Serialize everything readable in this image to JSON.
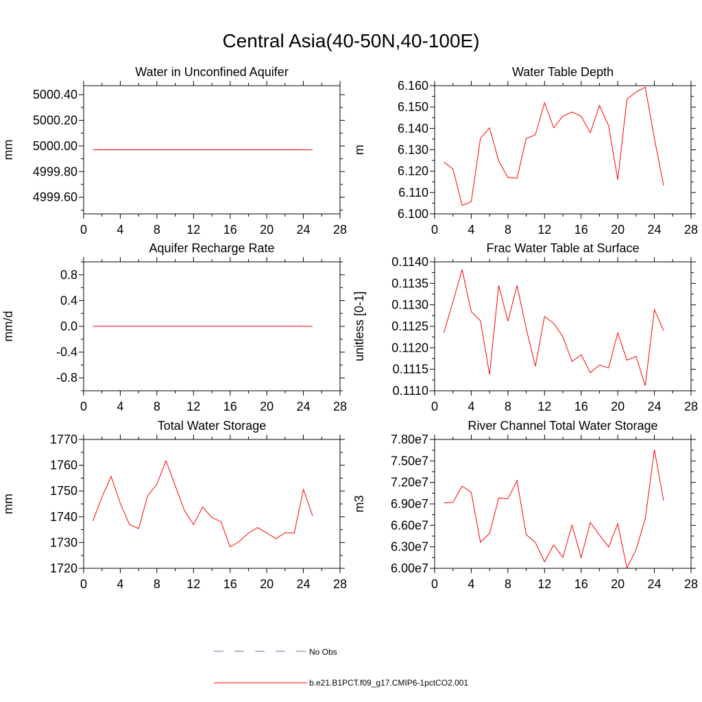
{
  "figure": {
    "title": "Central Asia(40-50N,40-100E)"
  },
  "legend": {
    "entries": [
      {
        "label": "No Obs",
        "style": "dashed",
        "color": "#6a6aa8"
      },
      {
        "label": "b.e21.B1PCT.f09_g17.CMIP6-1pctCO2.001",
        "style": "solid",
        "color": "#ff0000"
      }
    ]
  },
  "chart_data": [
    {
      "type": "line",
      "title": "Water in Unconfined Aquifer",
      "ylabel": "mm",
      "xlim": [
        0,
        28
      ],
      "xticks": [
        "0",
        "4",
        "8",
        "12",
        "16",
        "20",
        "24",
        "28"
      ],
      "ylim": [
        4999.47,
        5000.47
      ],
      "yticks": [
        4999.6,
        4999.8,
        5000.0,
        5000.2,
        5000.4
      ],
      "ytick_labels": [
        "4999.60",
        "4999.80",
        "5000.00",
        "5000.20",
        "5000.40"
      ],
      "series": [
        {
          "color": "#ff0000",
          "x": [
            1,
            2,
            3,
            4,
            5,
            6,
            7,
            8,
            9,
            10,
            11,
            12,
            13,
            14,
            15,
            16,
            17,
            18,
            19,
            20,
            21,
            22,
            23,
            24,
            25
          ],
          "y": [
            4999.97,
            4999.97,
            4999.97,
            4999.97,
            4999.97,
            4999.97,
            4999.97,
            4999.97,
            4999.97,
            4999.97,
            4999.97,
            4999.97,
            4999.97,
            4999.97,
            4999.97,
            4999.97,
            4999.97,
            4999.97,
            4999.97,
            4999.97,
            4999.97,
            4999.97,
            4999.97,
            4999.97,
            4999.97
          ]
        }
      ]
    },
    {
      "type": "line",
      "title": "Water Table Depth",
      "ylabel": "m",
      "xlim": [
        0,
        28
      ],
      "xticks": [
        "0",
        "4",
        "8",
        "12",
        "16",
        "20",
        "24",
        "28"
      ],
      "ylim": [
        6.1,
        6.16
      ],
      "yticks": [
        6.1,
        6.11,
        6.12,
        6.13,
        6.14,
        6.15,
        6.16
      ],
      "ytick_labels": [
        "6.100",
        "6.110",
        "6.120",
        "6.130",
        "6.140",
        "6.150",
        "6.160"
      ],
      "series": [
        {
          "color": "#ff0000",
          "x": [
            1,
            2,
            3,
            4,
            5,
            6,
            7,
            8,
            9,
            10,
            11,
            12,
            13,
            14,
            15,
            16,
            17,
            18,
            19,
            20,
            21,
            22,
            23,
            24,
            25
          ],
          "y": [
            6.1243,
            6.121,
            6.104,
            6.1057,
            6.1353,
            6.1403,
            6.1247,
            6.117,
            6.1167,
            6.1353,
            6.137,
            6.152,
            6.1403,
            6.1457,
            6.1477,
            6.1457,
            6.138,
            6.1507,
            6.1413,
            6.116,
            6.1537,
            6.157,
            6.1593,
            6.1353,
            6.1133
          ]
        }
      ]
    },
    {
      "type": "line",
      "title": "Aquifer Recharge Rate",
      "ylabel": "mm/d",
      "xlim": [
        0,
        28
      ],
      "xticks": [
        "0",
        "4",
        "8",
        "12",
        "16",
        "20",
        "24",
        "28"
      ],
      "ylim": [
        -1.0,
        1.0
      ],
      "yticks": [
        -0.8,
        -0.4,
        0.0,
        0.4,
        0.8
      ],
      "ytick_labels": [
        "-0.8",
        "-0.4",
        "0.0",
        "0.4",
        "0.8"
      ],
      "series": [
        {
          "color": "#ff0000",
          "x": [
            1,
            2,
            3,
            4,
            5,
            6,
            7,
            8,
            9,
            10,
            11,
            12,
            13,
            14,
            15,
            16,
            17,
            18,
            19,
            20,
            21,
            22,
            23,
            24,
            25
          ],
          "y": [
            0,
            0,
            0,
            0,
            0,
            0,
            0,
            0,
            0,
            0,
            0,
            0,
            0,
            0,
            0,
            0,
            0,
            0,
            0,
            0,
            0,
            0,
            0,
            0,
            0
          ]
        }
      ]
    },
    {
      "type": "line",
      "title": "Frac Water Table at Surface",
      "ylabel": "unitless [0-1]",
      "xlim": [
        0,
        28
      ],
      "xticks": [
        "0",
        "4",
        "8",
        "12",
        "16",
        "20",
        "24",
        "28"
      ],
      "ylim": [
        0.111,
        0.114
      ],
      "yticks": [
        0.111,
        0.1115,
        0.112,
        0.1125,
        0.113,
        0.1135,
        0.114
      ],
      "ytick_labels": [
        "0.1110",
        "0.1115",
        "0.1120",
        "0.1125",
        "0.1130",
        "0.1135",
        "0.1140"
      ],
      "series": [
        {
          "color": "#ff0000",
          "x": [
            1,
            2,
            3,
            4,
            5,
            6,
            7,
            8,
            9,
            10,
            11,
            12,
            13,
            14,
            15,
            16,
            17,
            18,
            19,
            20,
            21,
            22,
            23,
            24,
            25
          ],
          "y": [
            0.11235,
            0.11307,
            0.11382,
            0.11284,
            0.11263,
            0.11138,
            0.11345,
            0.11262,
            0.11345,
            0.11245,
            0.11157,
            0.11273,
            0.11257,
            0.11226,
            0.11168,
            0.11184,
            0.11142,
            0.1116,
            0.11153,
            0.11235,
            0.11171,
            0.1118,
            0.11112,
            0.11289,
            0.1124
          ]
        }
      ]
    },
    {
      "type": "line",
      "title": "Total Water Storage",
      "ylabel": "mm",
      "xlim": [
        0,
        28
      ],
      "xticks": [
        "0",
        "4",
        "8",
        "12",
        "16",
        "20",
        "24",
        "28"
      ],
      "ylim": [
        1720,
        1770
      ],
      "yticks": [
        1720,
        1730,
        1740,
        1750,
        1760,
        1770
      ],
      "ytick_labels": [
        "1720",
        "1730",
        "1740",
        "1750",
        "1760",
        "1770"
      ],
      "series": [
        {
          "color": "#ff0000",
          "x": [
            1,
            2,
            3,
            4,
            5,
            6,
            7,
            8,
            9,
            10,
            11,
            12,
            13,
            14,
            15,
            16,
            17,
            18,
            19,
            20,
            21,
            22,
            23,
            24,
            25
          ],
          "y": [
            1738.3,
            1747.6,
            1755.7,
            1745.2,
            1737.0,
            1735.4,
            1748.2,
            1752.6,
            1761.7,
            1752.1,
            1742.5,
            1737.0,
            1743.8,
            1739.7,
            1738.1,
            1728.3,
            1730.4,
            1733.7,
            1735.8,
            1733.7,
            1731.5,
            1733.8,
            1733.7,
            1750.6,
            1740.4
          ]
        }
      ]
    },
    {
      "type": "line",
      "title": "River Channel Total Water Storage",
      "ylabel": "m3",
      "xlim": [
        0,
        28
      ],
      "xticks": [
        "0",
        "4",
        "8",
        "12",
        "16",
        "20",
        "24",
        "28"
      ],
      "ylim": [
        60000000.0,
        78000000.0
      ],
      "yticks": [
        60000000.0,
        63000000.0,
        66000000.0,
        69000000.0,
        72000000.0,
        75000000.0,
        78000000.0
      ],
      "ytick_labels": [
        "6.00e7",
        "6.30e7",
        "6.60e7",
        "6.90e7",
        "7.20e7",
        "7.50e7",
        "7.80e7"
      ],
      "series": [
        {
          "color": "#ff0000",
          "x": [
            1,
            2,
            3,
            4,
            5,
            6,
            7,
            8,
            9,
            10,
            11,
            12,
            13,
            14,
            15,
            16,
            17,
            18,
            19,
            20,
            21,
            22,
            23,
            24,
            25
          ],
          "y": [
            69150000.0,
            69210000.0,
            71480000.0,
            70610000.0,
            63630000.0,
            64900000.0,
            69830000.0,
            69710000.0,
            72240000.0,
            64710000.0,
            63610000.0,
            60910000.0,
            63270000.0,
            61520000.0,
            66040000.0,
            61490000.0,
            66410000.0,
            64650000.0,
            62970000.0,
            66230000.0,
            60030000.0,
            62620000.0,
            66910000.0,
            76560000.0,
            69450000.0
          ]
        }
      ]
    }
  ]
}
